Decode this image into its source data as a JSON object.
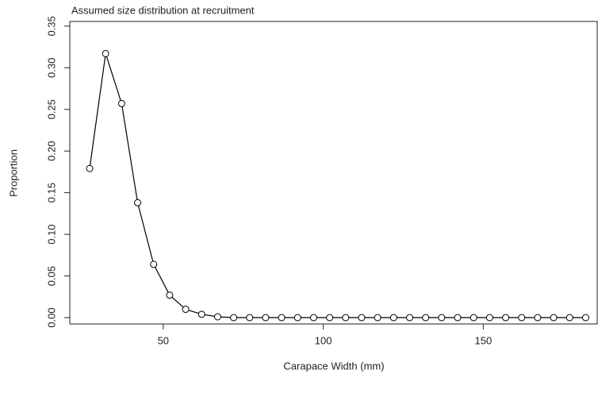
{
  "chart_data": {
    "type": "line",
    "title": "Assumed size distribution at recruitment",
    "x_label": "Carapace Width (mm)",
    "y_label": "Proportion",
    "x": [
      27,
      32,
      37,
      42,
      47,
      52,
      57,
      62,
      67,
      72,
      77,
      82,
      87,
      92,
      97,
      102,
      107,
      112,
      117,
      122,
      127,
      132,
      137,
      142,
      147,
      152,
      157,
      162,
      167,
      172,
      177,
      182
    ],
    "series": [
      {
        "color": "#000000",
        "values": [
          0.179,
          0.317,
          0.257,
          0.138,
          0.064,
          0.027,
          0.01,
          0.004,
          0.001,
          0,
          0,
          0,
          0,
          0,
          0,
          0,
          0,
          0,
          0,
          0,
          0,
          0,
          0,
          0,
          0,
          0,
          0,
          0,
          0,
          0,
          0,
          0
        ]
      }
    ],
    "xlim": [
      20.8,
      185.6
    ],
    "ylim": [
      -0.0076,
      0.3556
    ],
    "xticks": [
      50,
      100,
      150
    ],
    "yticks": [
      {
        "value": 0,
        "label": "0.00"
      },
      {
        "value": 0.05,
        "label": "0.05"
      },
      {
        "value": 0.1,
        "label": "0.10"
      },
      {
        "value": 0.15,
        "label": "0.15"
      },
      {
        "value": 0.2,
        "label": "0.20"
      },
      {
        "value": 0.25,
        "label": "0.25"
      },
      {
        "value": 0.3,
        "label": "0.30"
      },
      {
        "value": 0.35,
        "label": "0.35"
      }
    ]
  }
}
